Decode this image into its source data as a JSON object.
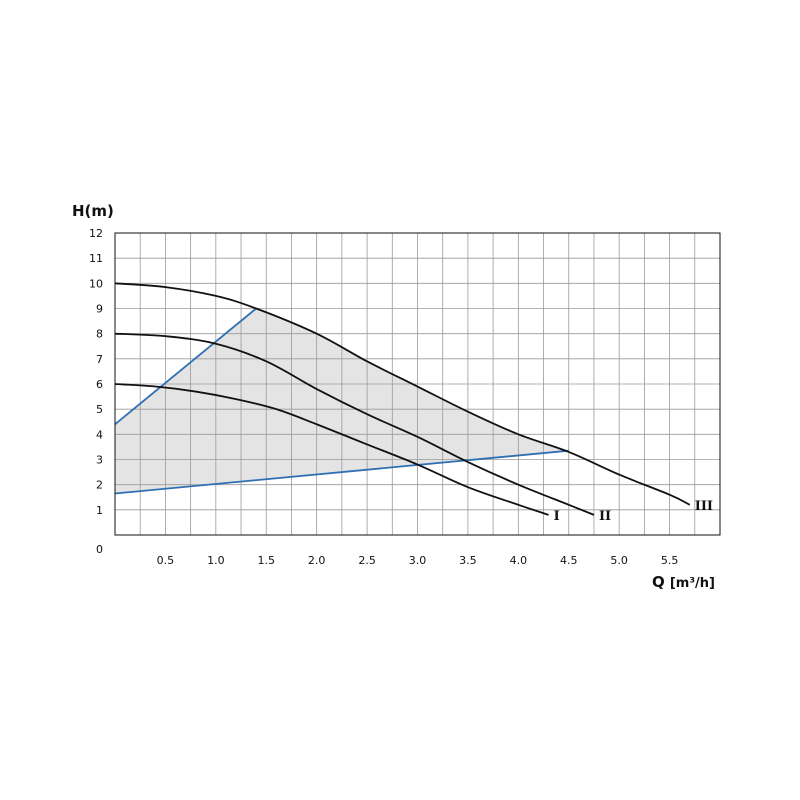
{
  "chart_data": {
    "type": "line",
    "ylabel": "H(m)",
    "xlabel_main": "Q",
    "xlabel_unit": "[m³/h]",
    "xlim": [
      0,
      6.0
    ],
    "ylim": [
      0,
      12
    ],
    "grid": true,
    "x_ticks": [
      "0.5",
      "1.0",
      "1.5",
      "2.0",
      "2.5",
      "3.0",
      "3.5",
      "4.0",
      "4.5",
      "5.0",
      "5.5"
    ],
    "x_tick_values": [
      0.5,
      1.0,
      1.5,
      2.0,
      2.5,
      3.0,
      3.5,
      4.0,
      4.5,
      5.0,
      5.5
    ],
    "y_ticks": [
      "0",
      "1",
      "2",
      "3",
      "4",
      "5",
      "6",
      "7",
      "8",
      "9",
      "10",
      "11",
      "12"
    ],
    "series": [
      {
        "name": "I",
        "color": "#111111",
        "x": [
          0,
          0.4,
          0.8,
          1.2,
          1.6,
          2.0,
          2.5,
          3.0,
          3.5,
          4.0,
          4.3
        ],
        "y": [
          6.0,
          5.9,
          5.7,
          5.4,
          5.0,
          4.4,
          3.6,
          2.8,
          1.9,
          1.2,
          0.8
        ]
      },
      {
        "name": "II",
        "color": "#111111",
        "x": [
          0,
          0.5,
          1.0,
          1.5,
          2.0,
          2.5,
          3.0,
          3.5,
          4.0,
          4.5,
          4.75
        ],
        "y": [
          8.0,
          7.9,
          7.6,
          6.9,
          5.8,
          4.8,
          3.9,
          2.9,
          2.0,
          1.2,
          0.8
        ]
      },
      {
        "name": "III",
        "color": "#111111",
        "x": [
          0,
          0.5,
          1.0,
          1.4,
          2.0,
          2.5,
          3.0,
          3.5,
          4.0,
          4.5,
          5.0,
          5.5,
          5.7
        ],
        "y": [
          10.0,
          9.85,
          9.5,
          9.0,
          8.0,
          6.9,
          5.9,
          4.9,
          4.0,
          3.3,
          2.4,
          1.6,
          1.2
        ]
      }
    ],
    "system_lines": [
      {
        "color": "#2f6fb3",
        "x": [
          0,
          1.4
        ],
        "y": [
          4.4,
          9.0
        ]
      },
      {
        "color": "#2f6fb3",
        "x": [
          0,
          4.5
        ],
        "y": [
          1.65,
          3.35
        ]
      }
    ],
    "shaded_region": {
      "color": "#e4e4e4",
      "x": [
        0,
        1.4,
        2.0,
        2.5,
        3.0,
        3.5,
        4.0,
        4.5,
        0
      ],
      "y": [
        4.4,
        9.0,
        8.0,
        6.9,
        5.9,
        4.9,
        4.0,
        3.35,
        1.65
      ]
    }
  }
}
